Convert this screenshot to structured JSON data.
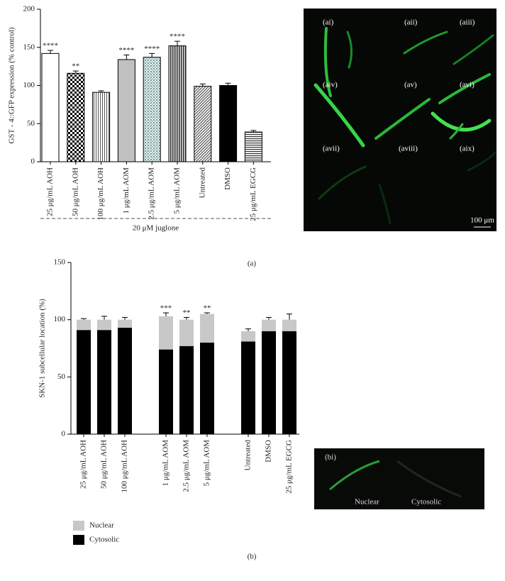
{
  "chart_data": [
    {
      "type": "bar",
      "y_label": "GST - 4::GFP expression (% control)",
      "x_label": "20 μM juglone",
      "categories": [
        "25 μg/mL AOH",
        "50 μg/mL AOH",
        "100 μg/mL AOH",
        "1 μg/mL AOM",
        "2.5 μg/mL AOM",
        "5 μg/mL AOM",
        "Untreated",
        "DMSO",
        "25 μg/mL EGCG"
      ],
      "values": [
        142,
        116,
        91,
        134,
        137,
        152,
        99,
        100,
        39
      ],
      "errors": [
        4,
        3,
        2,
        6,
        5,
        6,
        3,
        3,
        2
      ],
      "annotations": [
        "****",
        "**",
        null,
        "****",
        "****",
        "****",
        null,
        null,
        null
      ],
      "fills": [
        "white",
        "checker",
        "vlines",
        "gray",
        "dots",
        "vstripes",
        "diag",
        "black",
        "hlines"
      ],
      "color": "#000000",
      "ylim": [
        0,
        200
      ],
      "yticks": [
        0,
        50,
        100,
        150,
        200
      ],
      "panel_label": "(a)",
      "image_labels": [
        "(ai)",
        "(aii)",
        "(aiii)",
        "(aiv)",
        "(av)",
        "(avi)",
        "(avii)",
        "(aviii)",
        "(aix)"
      ],
      "scale_bar": "100 μm"
    },
    {
      "type": "stacked-bar",
      "y_label": "SKN-1 subcellular location (%)",
      "categories": [
        "25 μg/mL AOH",
        "50 μg/mL AOH",
        "100 μg/mL AOH",
        null,
        "1 μg/mL AOM",
        "2.5 μg/mL AOM",
        "5 μg/mL AOM",
        null,
        "Untreated",
        "DMSO",
        "25 μg/mL EGCG"
      ],
      "series": [
        {
          "name": "Nuclear",
          "color": "#c8c8c8",
          "values": [
            9,
            9,
            7,
            null,
            29,
            23,
            25,
            null,
            9,
            10,
            10
          ]
        },
        {
          "name": "Cytosolic",
          "color": "#000000",
          "values": [
            91,
            91,
            93,
            null,
            74,
            77,
            80,
            null,
            81,
            90,
            90
          ]
        }
      ],
      "errors": [
        1,
        3,
        2,
        null,
        3,
        2,
        1,
        null,
        2,
        2,
        5
      ],
      "annotations": [
        null,
        null,
        null,
        null,
        "***",
        "**",
        "**",
        null,
        null,
        null,
        null
      ],
      "ylim": [
        0,
        150
      ],
      "yticks": [
        0,
        50,
        100,
        150
      ],
      "panel_label": "(b)",
      "image_labels": [
        "(bi)",
        "Nuclear",
        "Cytosolic"
      ]
    }
  ]
}
